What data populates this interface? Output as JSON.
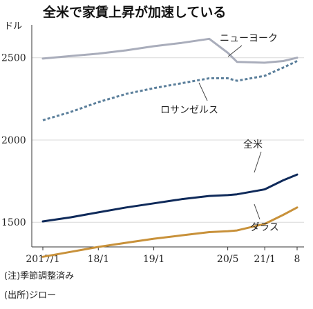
{
  "chart_data": {
    "type": "line",
    "title": "全米で家賃上昇が加速している",
    "ylabel": "ドル",
    "xlabel": "",
    "ylim": [
      1350,
      2700
    ],
    "yticks": [
      1500,
      2000,
      2500
    ],
    "x_ticks": [
      {
        "date": "2017-01",
        "label": "2017/1"
      },
      {
        "date": "2018-01",
        "label": "18/1"
      },
      {
        "date": "2019-01",
        "label": "19/1"
      },
      {
        "date": "2020-05",
        "label": "20/5"
      },
      {
        "date": "2021-01",
        "label": "21/1"
      },
      {
        "date": "2021-08",
        "label": "8"
      }
    ],
    "x": [
      "2017-01",
      "2017-07",
      "2018-01",
      "2018-07",
      "2019-01",
      "2019-07",
      "2020-01",
      "2020-05",
      "2020-07",
      "2021-01",
      "2021-05",
      "2021-08"
    ],
    "series": [
      {
        "name": "ニューヨーク",
        "color": "#a9adbb",
        "style": "solid",
        "values": [
          2495,
          2510,
          2525,
          2545,
          2570,
          2590,
          2615,
          2530,
          2475,
          2470,
          2480,
          2500
        ]
      },
      {
        "name": "ロサンゼルス",
        "color": "#5b7f9b",
        "style": "dotted",
        "values": [
          2120,
          2170,
          2230,
          2280,
          2315,
          2345,
          2375,
          2375,
          2360,
          2390,
          2440,
          2480
        ]
      },
      {
        "name": "全米",
        "color": "#0f2a5a",
        "style": "solid",
        "values": [
          1505,
          1530,
          1560,
          1590,
          1615,
          1640,
          1660,
          1665,
          1670,
          1700,
          1755,
          1790
        ]
      },
      {
        "name": "ダラス",
        "color": "#c8913a",
        "style": "solid",
        "values": [
          1290,
          1320,
          1350,
          1375,
          1400,
          1420,
          1440,
          1445,
          1450,
          1490,
          1545,
          1590
        ]
      }
    ]
  },
  "notes": [
    "(注)季節調整済み",
    "(出所)ジロー"
  ]
}
